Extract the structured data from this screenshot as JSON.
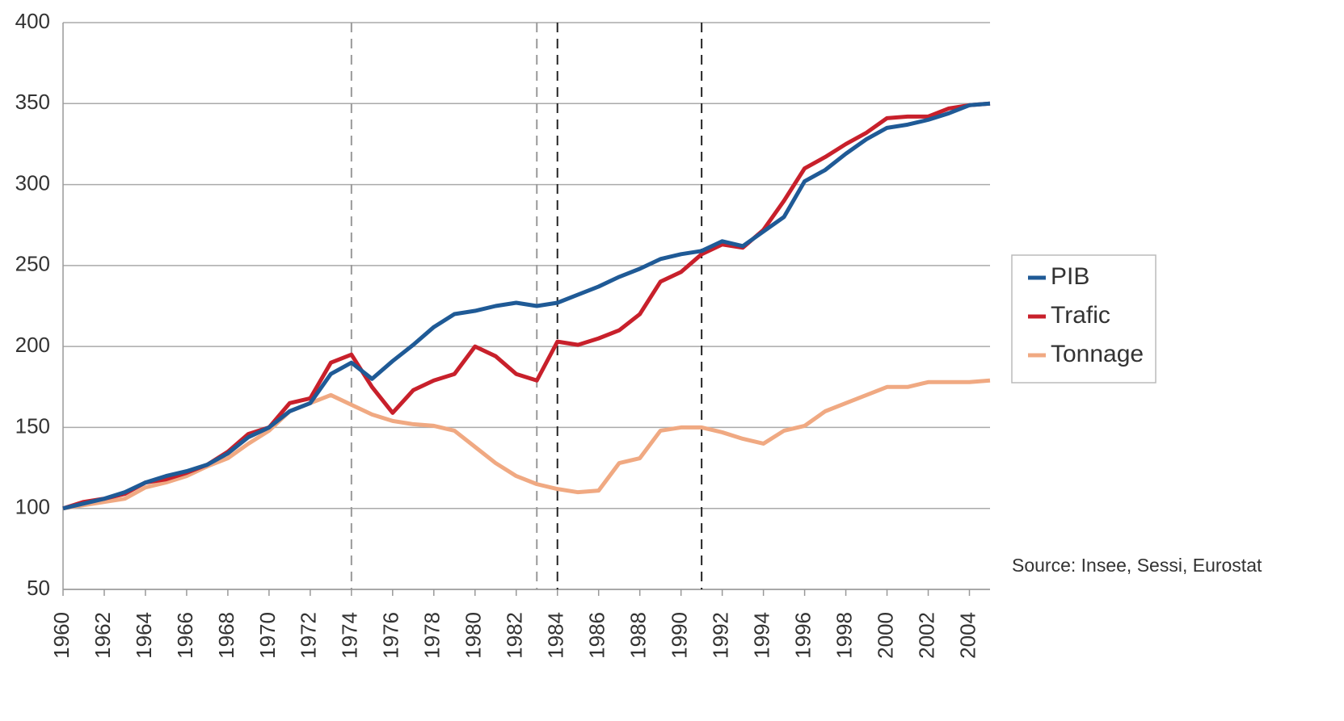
{
  "chart_data": {
    "type": "line",
    "x": [
      1960,
      1961,
      1962,
      1963,
      1964,
      1965,
      1966,
      1967,
      1968,
      1969,
      1970,
      1971,
      1972,
      1973,
      1974,
      1975,
      1976,
      1977,
      1978,
      1979,
      1980,
      1981,
      1982,
      1983,
      1984,
      1985,
      1986,
      1987,
      1988,
      1989,
      1990,
      1991,
      1992,
      1993,
      1994,
      1995,
      1996,
      1997,
      1998,
      1999,
      2000,
      2001,
      2002,
      2003,
      2004,
      2005
    ],
    "series": [
      {
        "name": "PIB",
        "color": "#1f5a96",
        "values": [
          100,
          103,
          106,
          110,
          116,
          120,
          123,
          127,
          134,
          144,
          150,
          160,
          165,
          183,
          190,
          180,
          191,
          201,
          212,
          220,
          222,
          225,
          227,
          225,
          227,
          232,
          237,
          243,
          248,
          254,
          257,
          259,
          265,
          262,
          271,
          280,
          302,
          309,
          319,
          328,
          335,
          337,
          340,
          344,
          349,
          350
        ]
      },
      {
        "name": "Trafic",
        "color": "#c8202b",
        "values": [
          100,
          104,
          106,
          109,
          116,
          118,
          122,
          127,
          135,
          146,
          150,
          165,
          168,
          190,
          195,
          175,
          159,
          173,
          179,
          183,
          200,
          194,
          183,
          179,
          203,
          201,
          205,
          210,
          220,
          240,
          246,
          257,
          263,
          261,
          272,
          290,
          310,
          317,
          325,
          332,
          341,
          342,
          342,
          347,
          349,
          350
        ]
      },
      {
        "name": "Tonnage",
        "color": "#f0a982",
        "values": [
          100,
          102,
          104,
          106,
          113,
          116,
          120,
          126,
          131,
          140,
          148,
          160,
          165,
          170,
          164,
          158,
          154,
          152,
          151,
          148,
          138,
          128,
          120,
          115,
          112,
          110,
          111,
          128,
          131,
          148,
          150,
          150,
          147,
          143,
          140,
          148,
          151,
          160,
          165,
          170,
          175,
          175,
          178,
          178,
          178,
          179
        ]
      }
    ],
    "xlim": [
      1960,
      2005
    ],
    "xticks": [
      1960,
      1962,
      1964,
      1966,
      1968,
      1970,
      1972,
      1974,
      1976,
      1978,
      1980,
      1982,
      1984,
      1986,
      1988,
      1990,
      1992,
      1994,
      1996,
      1998,
      2000,
      2002,
      2004
    ],
    "ylim": [
      50,
      400
    ],
    "yticks": [
      50,
      100,
      150,
      200,
      250,
      300,
      350,
      400
    ],
    "grid": true,
    "legend": "right",
    "reference_lines": [
      {
        "x": 1974,
        "color": "#999999"
      },
      {
        "x": 1983,
        "color": "#999999"
      },
      {
        "x": 1984,
        "color": "#222222"
      },
      {
        "x": 1991,
        "color": "#222222"
      }
    ],
    "source": "Source:  Insee, Sessi, Eurostat"
  }
}
